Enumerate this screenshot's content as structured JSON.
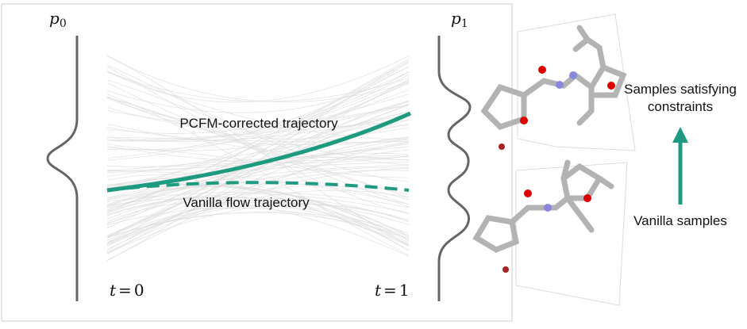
{
  "left_panel": {
    "source": {
      "symbol": "p",
      "subscript": "0"
    },
    "target": {
      "symbol": "p",
      "subscript": "1"
    },
    "trajectory_labels": [
      "PCFM-corrected trajectory",
      "Vanilla flow trajectory"
    ],
    "time_labels": [
      {
        "symbol": "t",
        "relation": "=",
        "value": "0"
      },
      {
        "symbol": "t",
        "relation": "=",
        "value": "1"
      }
    ]
  },
  "right_panel": {
    "top_label": [
      "Samples satisfying",
      "constraints"
    ],
    "bottom_label": "Vanilla samples"
  }
}
